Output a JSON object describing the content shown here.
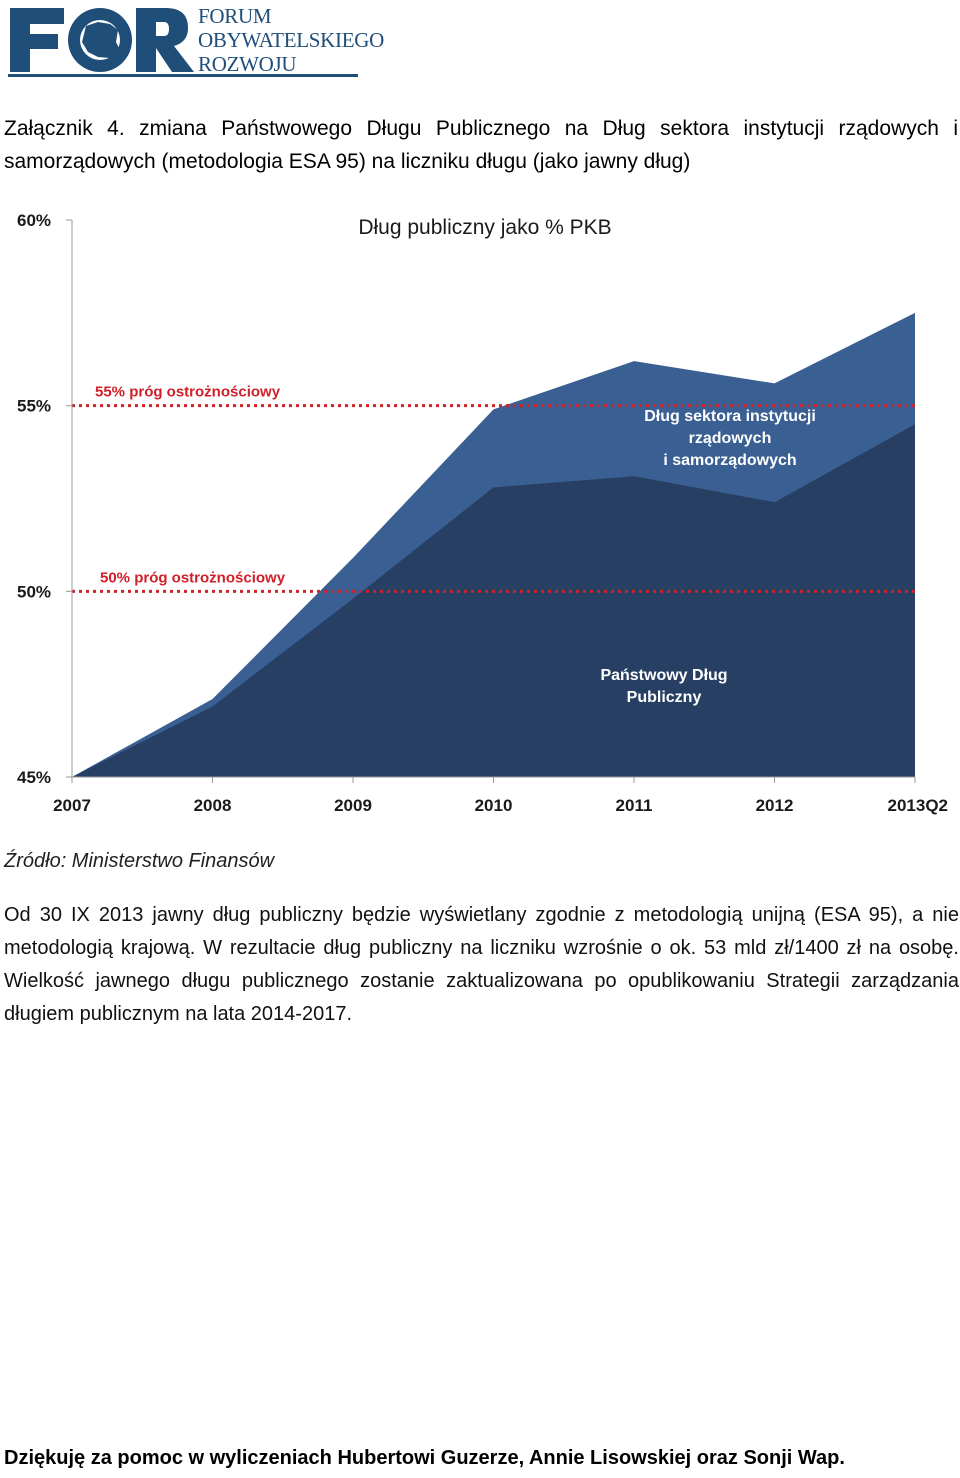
{
  "header": {
    "logo_mark": "FOR",
    "logo_lines": [
      "FORUM",
      "OBYWATELSKIEGO",
      "ROZWOJU"
    ],
    "logo_color": "#1f4e79"
  },
  "annex_title": "Załącznik 4. zmiana Państwowego Długu Publicznego na Dług sektora instytucji rządowych i samorządowych (metodologia ESA 95) na liczniku długu (jako jawny dług)",
  "chart_data": {
    "type": "area",
    "title": "Dług publiczny jako % PKB",
    "categories": [
      "2007",
      "2008",
      "2009",
      "2010",
      "2011",
      "2012",
      "2013Q2"
    ],
    "ylim": [
      45,
      60
    ],
    "yticks": [
      "45%",
      "50%",
      "55%",
      "60%"
    ],
    "ytick_values": [
      45,
      50,
      55,
      60
    ],
    "series": [
      {
        "name": "Dług sektora instytucji rządowych i samorządowych",
        "name_lines": [
          "Dług sektora instytucji",
          "rządowych",
          "i samorządowych"
        ],
        "values": [
          45.0,
          47.1,
          50.9,
          54.9,
          56.2,
          55.6,
          57.5
        ],
        "color": "#3a5f93"
      },
      {
        "name": "Państwowy Dług Publiczny",
        "name_lines": [
          "Państwowy Dług",
          "Publiczny"
        ],
        "values": [
          45.0,
          46.9,
          49.8,
          52.8,
          53.1,
          52.4,
          54.5
        ],
        "color": "#273f62"
      }
    ],
    "thresholds": [
      {
        "value": 55,
        "label": "55% próg ostrożnościowy",
        "color": "#d0202a"
      },
      {
        "value": 50,
        "label": "50% próg ostrożnościowy",
        "color": "#d0202a"
      }
    ],
    "grid": false
  },
  "source": "Źródło: Ministerstwo Finansów",
  "body_text": "Od 30 IX 2013 jawny dług publiczny będzie wyświetlany zgodnie z metodologią unijną (ESA 95), a nie metodologią krajową. W rezultacie dług publiczny na liczniku wzrośnie o ok. 53 mld zł/1400 zł na osobę. Wielkość jawnego długu publicznego zostanie zaktualizowana po opublikowaniu Strategii zarządzania długiem publicznym na lata 2014-2017.",
  "thanks": "Dziękuję za pomoc w wyliczeniach Hubertowi Guzerze, Annie Lisowskiej oraz Sonji Wap."
}
